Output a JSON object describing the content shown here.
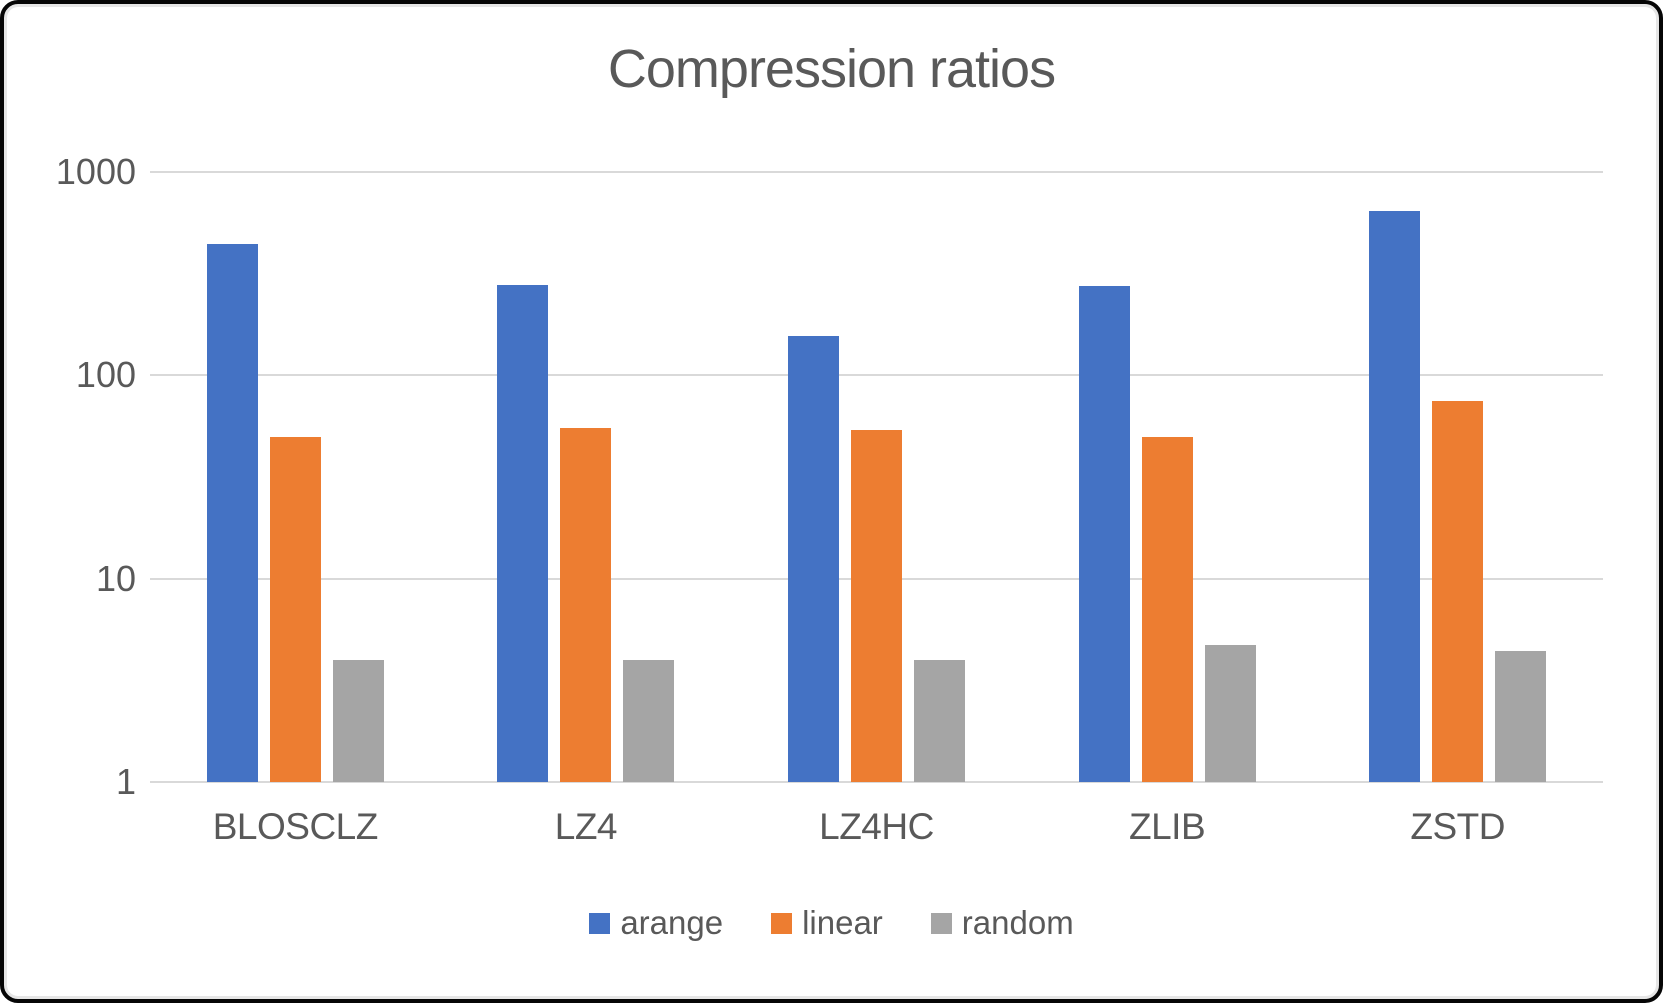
{
  "chart_data": {
    "type": "bar",
    "title": "Compression ratios",
    "y_scale": "log10",
    "ylim": [
      1,
      1000
    ],
    "y_ticks": [
      1,
      10,
      100,
      1000
    ],
    "grid": true,
    "legend_position": "bottom",
    "categories": [
      "BLOSCLZ",
      "LZ4",
      "LZ4HC",
      "ZLIB",
      "ZSTD"
    ],
    "series": [
      {
        "name": "arange",
        "color": "#4472C4",
        "values": [
          445,
          278,
          156,
          275,
          640
        ]
      },
      {
        "name": "linear",
        "color": "#ED7D31",
        "values": [
          50,
          55,
          54,
          50,
          75
        ]
      },
      {
        "name": "random",
        "color": "#A5A5A5",
        "values": [
          4.0,
          4.0,
          4.0,
          4.7,
          4.4
        ]
      }
    ],
    "text_color": "#595959",
    "gridline_color": "#D9D9D9"
  }
}
